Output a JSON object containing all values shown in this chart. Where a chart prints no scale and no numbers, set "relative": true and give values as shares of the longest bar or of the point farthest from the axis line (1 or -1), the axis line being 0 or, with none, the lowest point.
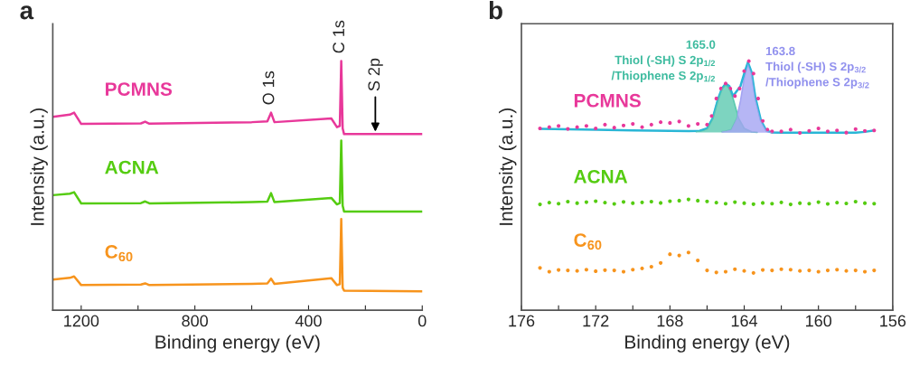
{
  "chart_data": [
    {
      "type": "line",
      "title": "a",
      "xlabel": "Binding energy (eV)",
      "ylabel": "Intensity (a.u.)",
      "relative": true,
      "tick_labels": "x",
      "grid": false,
      "legend": false,
      "xlim": [
        1300,
        0
      ],
      "xticks": [
        1200,
        {
          "value": 1000,
          "label": null
        },
        800,
        {
          "value": 600,
          "label": null
        },
        400,
        {
          "value": 200,
          "label": null
        },
        0
      ],
      "x": [
        1300,
        1240,
        1225,
        1200,
        990,
        975,
        960,
        600,
        545,
        532,
        520,
        320,
        300,
        290,
        285,
        280,
        275,
        0
      ],
      "series": [
        {
          "name": "PCMNS",
          "color": "#e8389a",
          "values": [
            0.776,
            0.785,
            0.793,
            0.748,
            0.75,
            0.757,
            0.749,
            0.755,
            0.758,
            0.793,
            0.755,
            0.77,
            0.735,
            0.74,
            1.0,
            0.73,
            0.707,
            0.707
          ]
        },
        {
          "name": "ACNA",
          "color": "#55cc11",
          "values": [
            0.462,
            0.468,
            0.474,
            0.429,
            0.43,
            0.437,
            0.429,
            0.434,
            0.436,
            0.47,
            0.434,
            0.451,
            0.425,
            0.43,
            0.681,
            0.42,
            0.396,
            0.396
          ]
        },
        {
          "name": "C$_{60}$",
          "color": "#f7941d",
          "values": [
            0.123,
            0.13,
            0.136,
            0.101,
            0.103,
            0.108,
            0.101,
            0.106,
            0.108,
            0.127,
            0.106,
            0.129,
            0.101,
            0.105,
            0.366,
            0.09,
            0.079,
            0.076
          ]
        }
      ],
      "annotations": [
        {
          "text": "O 1s",
          "x": 532,
          "y": 0.793
        },
        {
          "text": "C 1s",
          "x": 285,
          "y": 1.0
        },
        {
          "text": "S 2p",
          "x": 165,
          "y": 0.707
        }
      ]
    },
    {
      "type": "scatter",
      "title": "b",
      "xlabel": "Binding energy (eV)",
      "ylabel": "Intensity (a.u.)",
      "relative": true,
      "tick_labels": "x",
      "grid": false,
      "legend": false,
      "xlim": [
        176,
        156
      ],
      "xticks": [
        176,
        {
          "value": 174,
          "label": null
        },
        172,
        {
          "value": 170,
          "label": null
        },
        168,
        {
          "value": 166,
          "label": null
        },
        164,
        {
          "value": 162,
          "label": null
        },
        160,
        {
          "value": 158,
          "label": null
        },
        156
      ],
      "x": [
        175,
        174.5,
        174,
        173.5,
        173,
        172.5,
        172,
        171.5,
        171,
        170.5,
        170,
        169.5,
        169,
        168.5,
        168,
        167.5,
        167,
        166.5,
        166,
        165.5,
        165,
        164.5,
        164,
        163.5,
        163,
        162.5,
        162,
        161.5,
        161,
        160.5,
        160,
        159.5,
        159,
        158.5,
        158,
        157.5,
        157
      ],
      "series": [
        {
          "name": "PCMNS",
          "color": "#e8389a",
          "marker": "circle",
          "x": [
            175,
            174.5,
            174,
            173.5,
            173,
            172.5,
            172,
            171.5,
            171,
            170.5,
            170,
            169.5,
            169,
            168.5,
            168,
            167.5,
            167,
            166.5,
            166,
            165.75,
            165.5,
            165.25,
            165,
            164.75,
            164.5,
            164.25,
            164,
            163.75,
            163.5,
            163.25,
            163,
            162.75,
            162.5,
            162,
            161.5,
            161,
            160.5,
            160,
            159.5,
            159,
            158.5,
            158,
            157.5,
            157
          ],
          "values": [
            0.73,
            0.735,
            0.74,
            0.728,
            0.735,
            0.74,
            0.73,
            0.745,
            0.733,
            0.742,
            0.748,
            0.735,
            0.745,
            0.755,
            0.752,
            0.758,
            0.74,
            0.748,
            0.745,
            0.78,
            0.85,
            0.89,
            0.91,
            0.89,
            0.86,
            0.89,
            0.96,
            1.0,
            0.95,
            0.85,
            0.76,
            0.725,
            0.718,
            0.718,
            0.725,
            0.712,
            0.72,
            0.73,
            0.718,
            0.722,
            0.713,
            0.727,
            0.72,
            0.722
          ]
        },
        {
          "name": "ACNA",
          "color": "#55cc11",
          "marker": "circle",
          "values": [
            0.425,
            0.432,
            0.428,
            0.436,
            0.43,
            0.434,
            0.438,
            0.432,
            0.427,
            0.435,
            0.43,
            0.433,
            0.436,
            0.431,
            0.438,
            0.44,
            0.445,
            0.44,
            0.437,
            0.432,
            0.428,
            0.434,
            0.43,
            0.426,
            0.431,
            0.428,
            0.433,
            0.425,
            0.43,
            0.428,
            0.434,
            0.427,
            0.432,
            0.429,
            0.436,
            0.43,
            0.428
          ]
        },
        {
          "name": "C$_{60}$",
          "color": "#f7941d",
          "marker": "circle",
          "values": [
            0.17,
            0.155,
            0.162,
            0.16,
            0.158,
            0.163,
            0.157,
            0.161,
            0.16,
            0.155,
            0.163,
            0.168,
            0.175,
            0.19,
            0.225,
            0.22,
            0.232,
            0.2,
            0.16,
            0.152,
            0.155,
            0.165,
            0.158,
            0.15,
            0.162,
            0.16,
            0.165,
            0.163,
            0.158,
            0.16,
            0.155,
            0.16,
            0.163,
            0.158,
            0.16,
            0.155,
            0.16
          ]
        },
        {
          "type": "area",
          "color": "#5cc9b0",
          "x": [
            166.6,
            166.2,
            166.0,
            165.7,
            165.4,
            165.2,
            165.0,
            164.8,
            164.6,
            164.3,
            164.0,
            163.6,
            163.3
          ],
          "values": [
            0.718,
            0.722,
            0.73,
            0.77,
            0.85,
            0.89,
            0.905,
            0.89,
            0.85,
            0.77,
            0.73,
            0.716,
            0.714
          ]
        },
        {
          "type": "area",
          "color": "#a4a4f2",
          "x": [
            165.2,
            165.0,
            164.7,
            164.4,
            164.2,
            164.0,
            163.8,
            163.6,
            163.4,
            163.1,
            162.8,
            162.5,
            162.2
          ],
          "values": [
            0.717,
            0.719,
            0.725,
            0.77,
            0.84,
            0.93,
            0.99,
            0.95,
            0.85,
            0.76,
            0.72,
            0.714,
            0.713
          ]
        },
        {
          "type": "line",
          "color": "#29b6d6",
          "x": [
            175,
            172,
            170,
            168,
            167,
            166.4,
            166.0,
            165.7,
            165.4,
            165.2,
            165.0,
            164.8,
            164.6,
            164.4,
            164.2,
            164.0,
            163.8,
            163.6,
            163.4,
            163.1,
            162.8,
            162.5,
            162,
            160,
            158,
            157.5,
            157
          ],
          "values": [
            0.728,
            0.725,
            0.722,
            0.72,
            0.719,
            0.72,
            0.73,
            0.77,
            0.85,
            0.89,
            0.91,
            0.9,
            0.86,
            0.88,
            0.9,
            0.95,
            0.995,
            0.955,
            0.855,
            0.762,
            0.72,
            0.714,
            0.713,
            0.713,
            0.713,
            0.716,
            0.722
          ]
        }
      ],
      "annotations": [
        {
          "text": "165.0\nThiol (-SH) S 2p$_{1/2}$\n/Thiophene S 2p$_{1/2}$",
          "x": 165.0,
          "y": 0.905
        },
        {
          "text": "163.8\nThiol (-SH) S 2p$_{3/2}$\n/Thiophene S 2p$_{3/2}$",
          "x": 163.8,
          "y": 1.0
        }
      ]
    }
  ]
}
